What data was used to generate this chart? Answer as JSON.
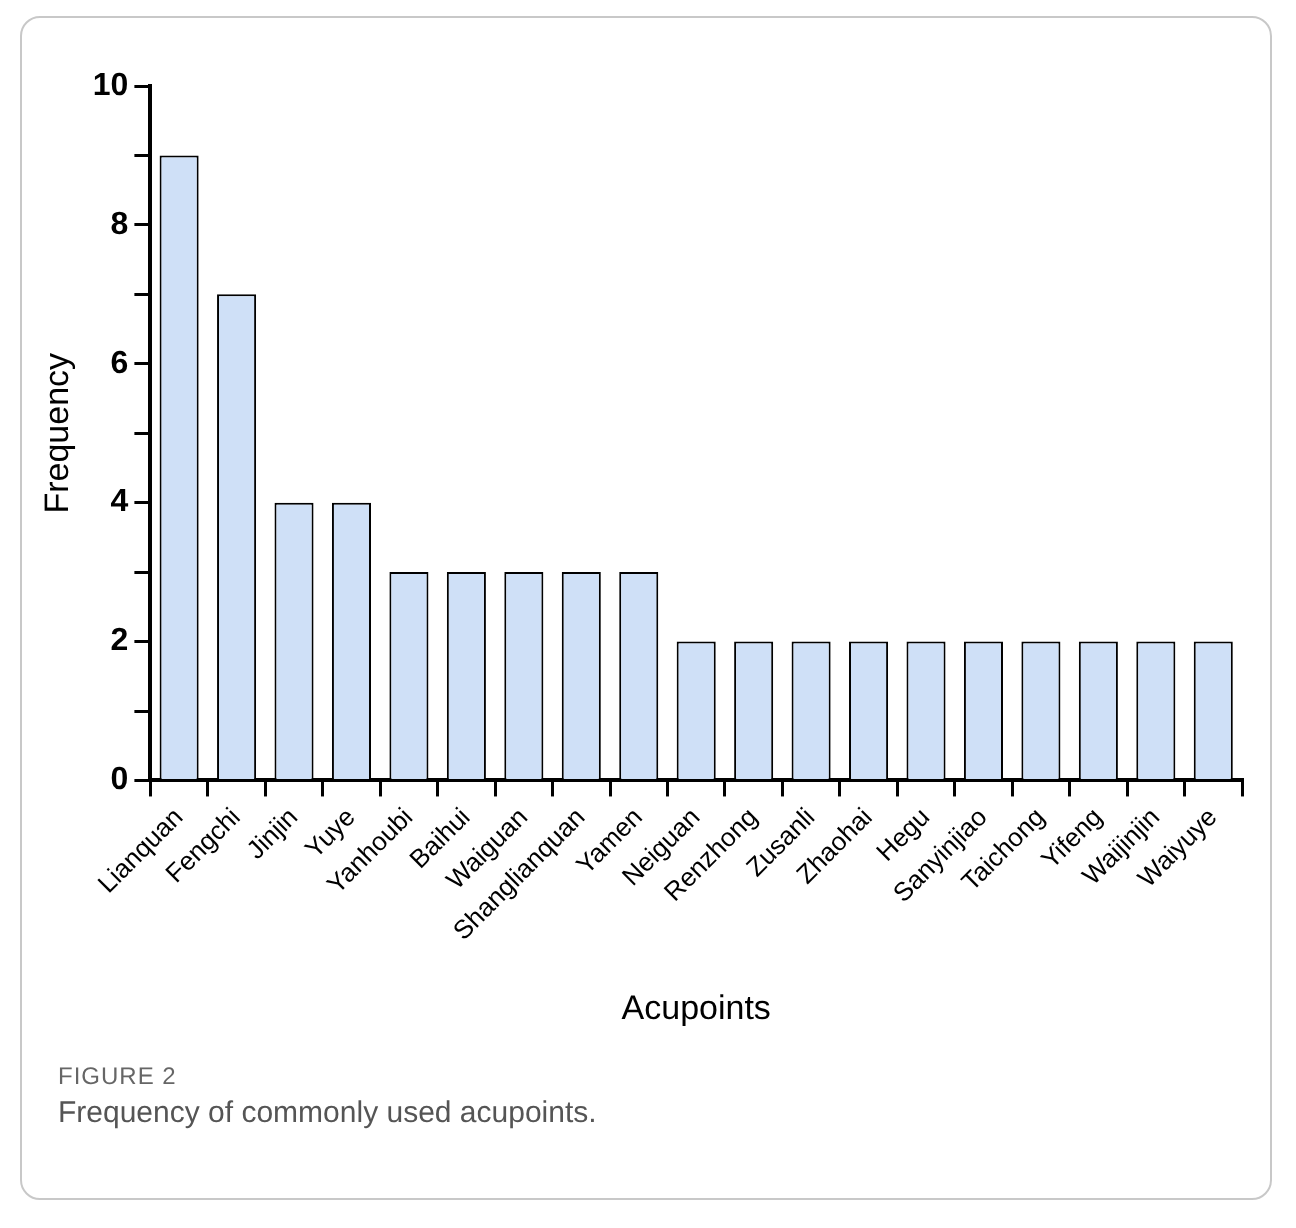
{
  "chart_data": {
    "type": "bar",
    "xlabel": "Acupoints",
    "ylabel": "Frequency",
    "categories": [
      "Lianquan",
      "Fengchi",
      "Jinjin",
      "Yuye",
      "Yanhoubi",
      "Baihui",
      "Waiguan",
      "Shanglianquan",
      "Yamen",
      "Neiguan",
      "Renzhong",
      "Zusanli",
      "Zhaohai",
      "Hegu",
      "Sanyinjiao",
      "Taichong",
      "Yifeng",
      "Waijinjin",
      "Waiyuye"
    ],
    "values": [
      9,
      7,
      4,
      4,
      3,
      3,
      3,
      3,
      3,
      2,
      2,
      2,
      2,
      2,
      2,
      2,
      2,
      2,
      2
    ],
    "color": "#cfe0f7",
    "ylim": [
      0,
      10
    ],
    "yticks": [
      0,
      {
        "value": 1,
        "label": null
      },
      2,
      {
        "value": 3,
        "label": null
      },
      4,
      {
        "value": 5,
        "label": null
      },
      6,
      {
        "value": 7,
        "label": null
      },
      8,
      {
        "value": 9,
        "label": null
      },
      10
    ],
    "grid": false,
    "legend": false,
    "annotations": [
      "FIGURE 2",
      "Frequency of commonly used acupoints."
    ]
  }
}
